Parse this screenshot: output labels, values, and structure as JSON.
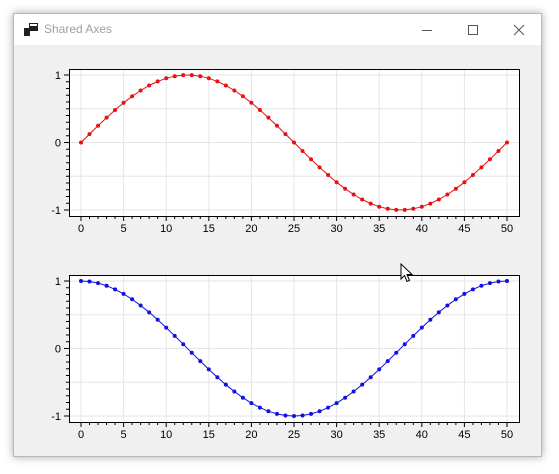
{
  "window": {
    "title": "Shared Axes",
    "minimize_icon": "minimize-icon",
    "maximize_icon": "maximize-icon",
    "close_icon": "close-icon"
  },
  "colors": {
    "top_series": "#e81010",
    "bottom_series": "#1010e0",
    "grid": "#e6e6e6",
    "axis": "#000000"
  },
  "chart_data": [
    {
      "type": "line",
      "title": "",
      "xlabel": "",
      "ylabel": "",
      "xlim": [
        0,
        50
      ],
      "ylim": [
        -1,
        1
      ],
      "x_ticks": [
        0,
        5,
        10,
        15,
        20,
        25,
        30,
        35,
        40,
        45,
        50
      ],
      "y_ticks": [
        -1,
        0,
        1
      ],
      "grid": true,
      "series": [
        {
          "color": "#e81010",
          "marker": "circle",
          "x": [
            0,
            1,
            2,
            3,
            4,
            5,
            6,
            7,
            8,
            9,
            10,
            11,
            12,
            13,
            14,
            15,
            16,
            17,
            18,
            19,
            20,
            21,
            22,
            23,
            24,
            25,
            26,
            27,
            28,
            29,
            30,
            31,
            32,
            33,
            34,
            35,
            36,
            37,
            38,
            39,
            40,
            41,
            42,
            43,
            44,
            45,
            46,
            47,
            48,
            49,
            50
          ],
          "y": [
            0,
            0.125,
            0.249,
            0.368,
            0.482,
            0.588,
            0.685,
            0.771,
            0.844,
            0.905,
            0.951,
            0.982,
            0.998,
            0.998,
            0.982,
            0.951,
            0.905,
            0.844,
            0.771,
            0.685,
            0.588,
            0.482,
            0.368,
            0.249,
            0.125,
            0,
            -0.125,
            -0.249,
            -0.368,
            -0.482,
            -0.588,
            -0.685,
            -0.771,
            -0.844,
            -0.905,
            -0.951,
            -0.982,
            -0.998,
            -0.998,
            -0.982,
            -0.951,
            -0.905,
            -0.844,
            -0.771,
            -0.685,
            -0.588,
            -0.482,
            -0.368,
            -0.249,
            -0.125,
            0
          ]
        }
      ]
    },
    {
      "type": "line",
      "title": "",
      "xlabel": "",
      "ylabel": "",
      "xlim": [
        0,
        50
      ],
      "ylim": [
        -1,
        1
      ],
      "x_ticks": [
        0,
        5,
        10,
        15,
        20,
        25,
        30,
        35,
        40,
        45,
        50
      ],
      "y_ticks": [
        -1,
        0,
        1
      ],
      "grid": true,
      "series": [
        {
          "color": "#1010e0",
          "marker": "circle",
          "x": [
            0,
            1,
            2,
            3,
            4,
            5,
            6,
            7,
            8,
            9,
            10,
            11,
            12,
            13,
            14,
            15,
            16,
            17,
            18,
            19,
            20,
            21,
            22,
            23,
            24,
            25,
            26,
            27,
            28,
            29,
            30,
            31,
            32,
            33,
            34,
            35,
            36,
            37,
            38,
            39,
            40,
            41,
            42,
            43,
            44,
            45,
            46,
            47,
            48,
            49,
            50
          ],
          "y": [
            1,
            0.992,
            0.969,
            0.93,
            0.876,
            0.809,
            0.729,
            0.637,
            0.536,
            0.426,
            0.309,
            0.187,
            0.063,
            -0.063,
            -0.187,
            -0.309,
            -0.426,
            -0.536,
            -0.637,
            -0.729,
            -0.809,
            -0.876,
            -0.93,
            -0.969,
            -0.992,
            -1,
            -0.992,
            -0.969,
            -0.93,
            -0.876,
            -0.809,
            -0.729,
            -0.637,
            -0.536,
            -0.426,
            -0.309,
            -0.187,
            -0.063,
            0.063,
            0.187,
            0.309,
            0.426,
            0.536,
            0.637,
            0.729,
            0.809,
            0.876,
            0.93,
            0.969,
            0.992,
            1
          ]
        }
      ]
    }
  ]
}
